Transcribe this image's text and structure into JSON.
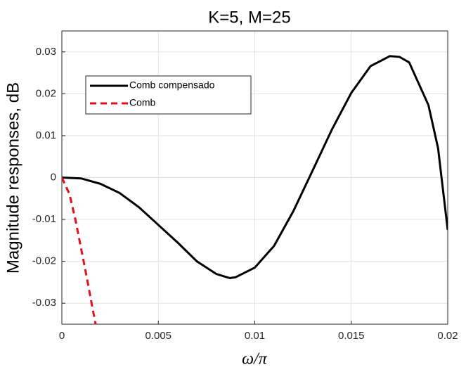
{
  "chart_data": {
    "type": "line",
    "title": "K=5, M=25",
    "xlabel": "ω/π",
    "ylabel": "Magnitude responses, dB",
    "xlim": [
      0,
      0.02
    ],
    "ylim": [
      -0.035,
      0.035
    ],
    "xticks": [
      0,
      0.005,
      0.01,
      0.015,
      0.02
    ],
    "yticks": [
      -0.03,
      -0.02,
      -0.01,
      0,
      0.01,
      0.02,
      0.03
    ],
    "grid": true,
    "legend": "upper left",
    "series": [
      {
        "name": "Comb compensado",
        "color": "#000000",
        "style": "solid",
        "x": [
          0,
          0.001,
          0.002,
          0.003,
          0.004,
          0.005,
          0.006,
          0.007,
          0.008,
          0.0087,
          0.009,
          0.01,
          0.011,
          0.012,
          0.013,
          0.014,
          0.015,
          0.016,
          0.017,
          0.0175,
          0.018,
          0.019,
          0.0195,
          0.02
        ],
        "values": [
          0,
          -0.0002,
          -0.0015,
          -0.0037,
          -0.0071,
          -0.0113,
          -0.0155,
          -0.02,
          -0.023,
          -0.024,
          -0.0238,
          -0.0215,
          -0.0163,
          -0.008,
          0.0017,
          0.0115,
          0.0202,
          0.0266,
          0.029,
          0.0288,
          0.0275,
          0.0173,
          0.007,
          -0.0125
        ]
      },
      {
        "name": "Comb",
        "color": "#e0101a",
        "style": "dash",
        "x": [
          0,
          0.0004,
          0.0007,
          0.001,
          0.0013,
          0.0015,
          0.00175
        ],
        "values": [
          0,
          -0.004,
          -0.01,
          -0.017,
          -0.024,
          -0.029,
          -0.035
        ]
      }
    ]
  }
}
